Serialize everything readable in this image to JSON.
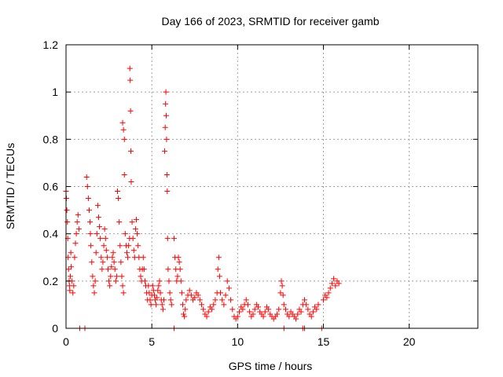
{
  "chart_data": {
    "type": "scatter",
    "title": "Day 166 of 2023, SRMTID for receiver gamb",
    "xlabel": "GPS time / hours",
    "ylabel": "SRMTID / TECUs",
    "xlim": [
      0,
      24
    ],
    "ylim": [
      0,
      1.2
    ],
    "xticks": [
      0,
      5,
      10,
      15,
      20
    ],
    "xtick_labels": [
      "0",
      "5",
      "10",
      "15",
      "20"
    ],
    "yticks": [
      0,
      0.2,
      0.4,
      0.6,
      0.8,
      1.0,
      1.2
    ],
    "ytick_labels": [
      "0",
      "0.2",
      "0.4",
      "0.6",
      "0.8",
      "1",
      "1.2"
    ],
    "grid": true,
    "marker": "+",
    "color": "#ff0000",
    "series": [
      {
        "name": "SRMTID",
        "points": [
          [
            0.0,
            0.58
          ],
          [
            0.02,
            0.55
          ],
          [
            0.05,
            0.5
          ],
          [
            0.08,
            0.45
          ],
          [
            0.1,
            0.38
          ],
          [
            0.12,
            0.3
          ],
          [
            0.15,
            0.25
          ],
          [
            0.18,
            0.2
          ],
          [
            0.2,
            0.18
          ],
          [
            0.22,
            0.16
          ],
          [
            0.25,
            0.22
          ],
          [
            0.28,
            0.32
          ],
          [
            0.3,
            0.26
          ],
          [
            0.35,
            0.2
          ],
          [
            0.4,
            0.15
          ],
          [
            0.45,
            0.18
          ],
          [
            0.5,
            0.3
          ],
          [
            0.55,
            0.36
          ],
          [
            0.6,
            0.4
          ],
          [
            0.65,
            0.45
          ],
          [
            0.7,
            0.48
          ],
          [
            0.75,
            0.42
          ],
          [
            0.8,
            0.0
          ],
          [
            1.1,
            0.0
          ],
          [
            1.2,
            0.64
          ],
          [
            1.25,
            0.6
          ],
          [
            1.3,
            0.55
          ],
          [
            1.35,
            0.5
          ],
          [
            1.4,
            0.45
          ],
          [
            1.42,
            0.4
          ],
          [
            1.45,
            0.35
          ],
          [
            1.5,
            0.28
          ],
          [
            1.55,
            0.22
          ],
          [
            1.6,
            0.18
          ],
          [
            1.65,
            0.15
          ],
          [
            1.7,
            0.2
          ],
          [
            1.75,
            0.32
          ],
          [
            1.8,
            0.4
          ],
          [
            1.85,
            0.52
          ],
          [
            1.9,
            0.47
          ],
          [
            1.95,
            0.43
          ],
          [
            2.0,
            0.38
          ],
          [
            2.05,
            0.3
          ],
          [
            2.1,
            0.25
          ],
          [
            2.15,
            0.28
          ],
          [
            2.2,
            0.35
          ],
          [
            2.25,
            0.42
          ],
          [
            2.3,
            0.38
          ],
          [
            2.35,
            0.33
          ],
          [
            2.4,
            0.3
          ],
          [
            2.45,
            0.25
          ],
          [
            2.5,
            0.2
          ],
          [
            2.55,
            0.18
          ],
          [
            2.6,
            0.22
          ],
          [
            2.65,
            0.26
          ],
          [
            2.7,
            0.3
          ],
          [
            2.75,
            0.32
          ],
          [
            2.8,
            0.28
          ],
          [
            2.85,
            0.25
          ],
          [
            2.9,
            0.2
          ],
          [
            2.95,
            0.22
          ],
          [
            3.0,
            0.58
          ],
          [
            3.05,
            0.55
          ],
          [
            3.1,
            0.45
          ],
          [
            3.15,
            0.35
          ],
          [
            3.2,
            0.28
          ],
          [
            3.25,
            0.22
          ],
          [
            3.3,
            0.18
          ],
          [
            3.35,
            0.15
          ],
          [
            3.3,
            0.87
          ],
          [
            3.35,
            0.84
          ],
          [
            3.4,
            0.8
          ],
          [
            3.4,
            0.65
          ],
          [
            3.45,
            0.4
          ],
          [
            3.5,
            0.35
          ],
          [
            3.55,
            0.32
          ],
          [
            3.6,
            0.3
          ],
          [
            3.65,
            0.35
          ],
          [
            3.7,
            0.38
          ],
          [
            3.72,
            1.1
          ],
          [
            3.74,
            1.05
          ],
          [
            3.76,
            0.92
          ],
          [
            3.78,
            0.75
          ],
          [
            3.8,
            0.62
          ],
          [
            3.85,
            0.45
          ],
          [
            3.9,
            0.38
          ],
          [
            3.95,
            0.33
          ],
          [
            4.0,
            0.3
          ],
          [
            4.05,
            0.42
          ],
          [
            4.1,
            0.46
          ],
          [
            4.15,
            0.4
          ],
          [
            4.2,
            0.35
          ],
          [
            4.25,
            0.3
          ],
          [
            4.3,
            0.25
          ],
          [
            4.35,
            0.22
          ],
          [
            4.4,
            0.2
          ],
          [
            4.45,
            0.25
          ],
          [
            4.5,
            0.3
          ],
          [
            4.55,
            0.25
          ],
          [
            4.6,
            0.2
          ],
          [
            4.65,
            0.18
          ],
          [
            4.7,
            0.15
          ],
          [
            4.75,
            0.12
          ],
          [
            4.8,
            0.18
          ],
          [
            4.85,
            0.15
          ],
          [
            4.9,
            0.12
          ],
          [
            4.95,
            0.1
          ],
          [
            5.0,
            0.14
          ],
          [
            5.05,
            0.18
          ],
          [
            5.1,
            0.16
          ],
          [
            5.15,
            0.14
          ],
          [
            5.2,
            0.12
          ],
          [
            5.25,
            0.1
          ],
          [
            5.3,
            0.13
          ],
          [
            5.35,
            0.16
          ],
          [
            5.4,
            0.18
          ],
          [
            5.45,
            0.2
          ],
          [
            5.5,
            0.15
          ],
          [
            5.55,
            0.12
          ],
          [
            5.6,
            0.1
          ],
          [
            5.65,
            0.08
          ],
          [
            5.7,
            0.12
          ],
          [
            5.75,
            0.75
          ],
          [
            5.78,
            0.85
          ],
          [
            5.8,
            0.95
          ],
          [
            5.82,
            1.0
          ],
          [
            5.84,
            0.9
          ],
          [
            5.86,
            0.8
          ],
          [
            5.88,
            0.65
          ],
          [
            5.9,
            0.58
          ],
          [
            5.92,
            0.38
          ],
          [
            5.95,
            0.25
          ],
          [
            6.0,
            0.2
          ],
          [
            6.05,
            0.15
          ],
          [
            6.1,
            0.12
          ],
          [
            6.15,
            0.1
          ],
          [
            6.3,
            0.0
          ],
          [
            6.3,
            0.38
          ],
          [
            6.35,
            0.3
          ],
          [
            6.4,
            0.25
          ],
          [
            6.45,
            0.2
          ],
          [
            6.5,
            0.22
          ],
          [
            6.55,
            0.3
          ],
          [
            6.6,
            0.28
          ],
          [
            6.65,
            0.25
          ],
          [
            6.7,
            0.2
          ],
          [
            6.75,
            0.15
          ],
          [
            6.8,
            0.1
          ],
          [
            6.85,
            0.06
          ],
          [
            6.9,
            0.05
          ],
          [
            6.95,
            0.08
          ],
          [
            7.0,
            0.12
          ],
          [
            7.1,
            0.14
          ],
          [
            7.2,
            0.16
          ],
          [
            7.3,
            0.14
          ],
          [
            7.4,
            0.12
          ],
          [
            7.5,
            0.13
          ],
          [
            7.6,
            0.15
          ],
          [
            7.7,
            0.14
          ],
          [
            7.8,
            0.12
          ],
          [
            7.9,
            0.1
          ],
          [
            8.0,
            0.08
          ],
          [
            8.1,
            0.06
          ],
          [
            8.2,
            0.05
          ],
          [
            8.3,
            0.07
          ],
          [
            8.4,
            0.09
          ],
          [
            8.5,
            0.08
          ],
          [
            8.6,
            0.1
          ],
          [
            8.7,
            0.12
          ],
          [
            8.8,
            0.15
          ],
          [
            8.85,
            0.25
          ],
          [
            8.9,
            0.3
          ],
          [
            8.95,
            0.22
          ],
          [
            9.0,
            0.15
          ],
          [
            9.1,
            0.12
          ],
          [
            9.2,
            0.1
          ],
          [
            9.3,
            0.14
          ],
          [
            9.4,
            0.2
          ],
          [
            9.5,
            0.17
          ],
          [
            9.6,
            0.12
          ],
          [
            9.7,
            0.08
          ],
          [
            9.8,
            0.05
          ],
          [
            9.9,
            0.04
          ],
          [
            10.0,
            0.05
          ],
          [
            10.1,
            0.07
          ],
          [
            10.2,
            0.09
          ],
          [
            10.3,
            0.08
          ],
          [
            10.4,
            0.1
          ],
          [
            10.5,
            0.12
          ],
          [
            10.6,
            0.1
          ],
          [
            10.7,
            0.07
          ],
          [
            10.8,
            0.05
          ],
          [
            10.9,
            0.06
          ],
          [
            11.0,
            0.08
          ],
          [
            11.1,
            0.1
          ],
          [
            11.2,
            0.09
          ],
          [
            11.3,
            0.07
          ],
          [
            11.4,
            0.06
          ],
          [
            11.5,
            0.05
          ],
          [
            11.6,
            0.07
          ],
          [
            11.7,
            0.09
          ],
          [
            11.8,
            0.08
          ],
          [
            11.9,
            0.06
          ],
          [
            12.0,
            0.05
          ],
          [
            12.1,
            0.04
          ],
          [
            12.2,
            0.05
          ],
          [
            12.3,
            0.06
          ],
          [
            12.4,
            0.08
          ],
          [
            12.5,
            0.15
          ],
          [
            12.55,
            0.2
          ],
          [
            12.6,
            0.18
          ],
          [
            12.65,
            0.14
          ],
          [
            12.7,
            0.1
          ],
          [
            12.7,
            0.0
          ],
          [
            12.8,
            0.08
          ],
          [
            12.9,
            0.06
          ],
          [
            13.0,
            0.05
          ],
          [
            13.1,
            0.07
          ],
          [
            13.2,
            0.06
          ],
          [
            13.3,
            0.05
          ],
          [
            13.4,
            0.04
          ],
          [
            13.5,
            0.06
          ],
          [
            13.6,
            0.08
          ],
          [
            13.7,
            0.07
          ],
          [
            13.8,
            0.0
          ],
          [
            13.9,
            0.0
          ],
          [
            13.8,
            0.1
          ],
          [
            13.9,
            0.12
          ],
          [
            14.0,
            0.1
          ],
          [
            14.1,
            0.08
          ],
          [
            14.2,
            0.06
          ],
          [
            14.3,
            0.05
          ],
          [
            14.4,
            0.07
          ],
          [
            14.5,
            0.09
          ],
          [
            14.6,
            0.08
          ],
          [
            14.7,
            0.1
          ],
          [
            14.9,
            0.0
          ],
          [
            15.0,
            0.12
          ],
          [
            15.1,
            0.14
          ],
          [
            15.2,
            0.13
          ],
          [
            15.3,
            0.15
          ],
          [
            15.4,
            0.17
          ],
          [
            15.5,
            0.19
          ],
          [
            15.6,
            0.21
          ],
          [
            15.7,
            0.18
          ],
          [
            15.8,
            0.2
          ],
          [
            15.9,
            0.19
          ]
        ]
      }
    ]
  }
}
